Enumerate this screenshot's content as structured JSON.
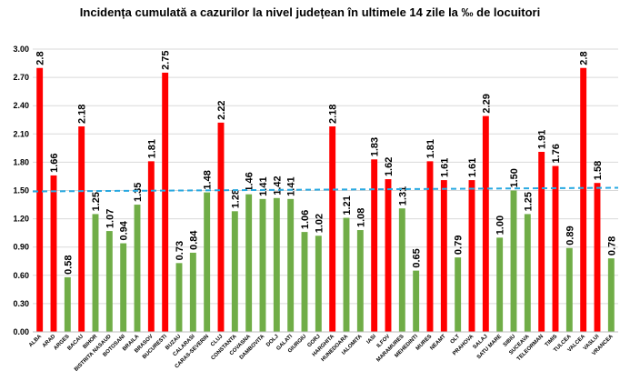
{
  "chart_data": {
    "type": "bar",
    "title": "Incidența cumulată a cazurilor la nivel județean în ultimele 14 zile la ‰ de locuitori",
    "xlabel": "",
    "ylabel": "",
    "ylim": [
      0,
      3.0
    ],
    "yticks": [
      "0.00",
      "0.30",
      "0.60",
      "0.90",
      "1.20",
      "1.50",
      "1.80",
      "2.10",
      "2.40",
      "2.70",
      "3.00"
    ],
    "grid": true,
    "threshold": 1.5,
    "colors": {
      "above": "#ff0000",
      "below": "#70ad47",
      "threshold": "#29a9e1",
      "grid": "#d9d9d9"
    },
    "categories": [
      "ALBA",
      "ARAD",
      "ARGES",
      "BACAU",
      "BIHOR",
      "BISTRITA NASAUD",
      "BOTOSANI",
      "BRAILA",
      "BRASOV",
      "BUCURESTI",
      "BUZAU",
      "CALARASI",
      "CARAS-SEVERIN",
      "CLUJ",
      "CONSTANTA",
      "COVASNA",
      "DAMBOVITA",
      "DOLJ",
      "GALATI",
      "GIURGIU",
      "GORJ",
      "HARGHITA",
      "HUNEDOARA",
      "IALOMITA",
      "IASI",
      "ILFOV",
      "MARAMURES",
      "MEHEDINTI",
      "MURES",
      "NEAMT",
      "OLT",
      "PRAHOVA",
      "SALAJ",
      "SATU MARE",
      "SIBIU",
      "SUCEAVA",
      "TELEORMAN",
      "TIMIS",
      "TULCEA",
      "VALCEA",
      "VASLUI",
      "VRANCEA"
    ],
    "values": [
      2.8,
      1.66,
      0.58,
      2.18,
      1.25,
      1.07,
      0.94,
      1.35,
      1.81,
      2.75,
      0.73,
      0.84,
      1.48,
      2.22,
      1.28,
      1.46,
      1.41,
      1.42,
      1.41,
      1.06,
      1.02,
      2.18,
      1.21,
      1.08,
      1.83,
      1.62,
      1.31,
      0.65,
      1.81,
      1.61,
      0.79,
      1.61,
      2.29,
      1.0,
      1.5,
      1.25,
      1.91,
      1.76,
      0.89,
      2.8,
      1.58,
      0.78
    ],
    "labels": [
      "2.8",
      "1.66",
      "0.58",
      "2.18",
      "1.25",
      "1.07",
      "0.94",
      "1.35",
      "1.81",
      "2.75",
      "0.73",
      "0.84",
      "1.48",
      "2.22",
      "1.28",
      "1.46",
      "1.41",
      "1.42",
      "1.41",
      "1.06",
      "1.02",
      "2.18",
      "1.21",
      "1.08",
      "1.83",
      "1.62",
      "1.31",
      "0.65",
      "1.81",
      "1.61",
      "0.79",
      "1.61",
      "2.29",
      "1.00",
      "1.50",
      "1.25",
      "1.91",
      "1.76",
      "0.89",
      "2.8",
      "1.58",
      "0.78"
    ]
  }
}
